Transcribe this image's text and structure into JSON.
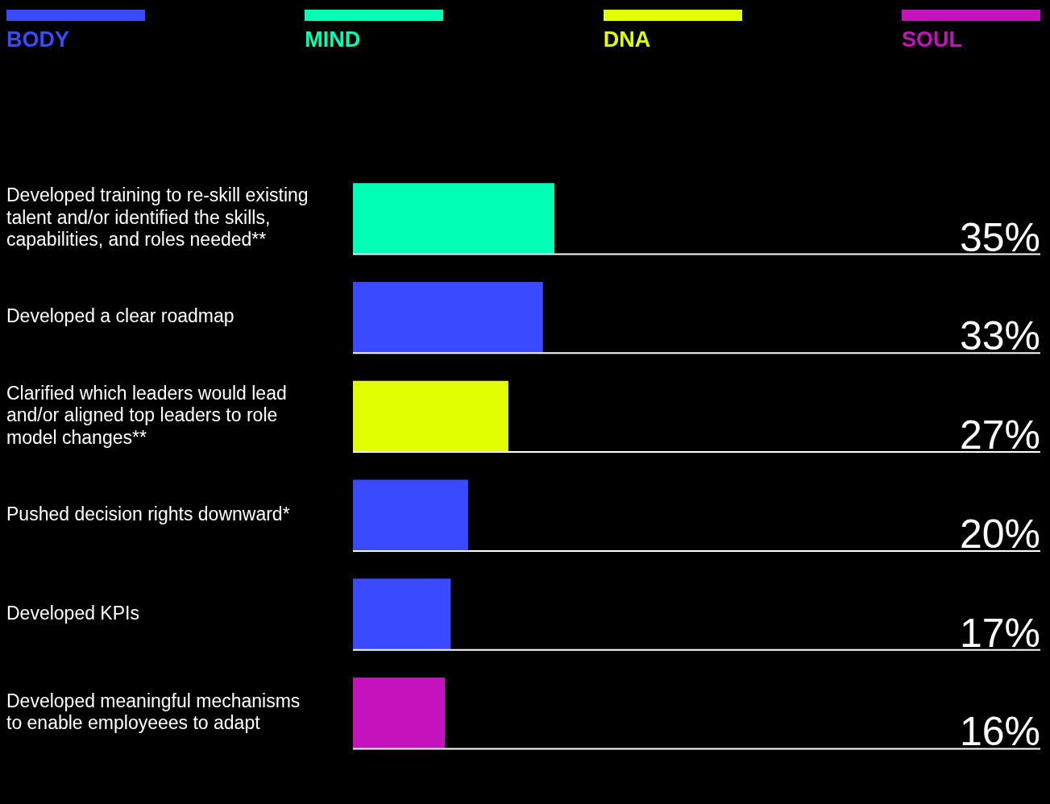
{
  "chart_data": {
    "type": "bar",
    "orientation": "horizontal",
    "stacked": true,
    "legend": "top",
    "tick_labels": "y",
    "categories": [
      "Developed training to re-skill existing talent and/or identified the skills, capabilities, and roles needed**",
      "Developed a clear roadmap",
      "Clarified which leaders would lead and/or aligned top leaders to role model changes**",
      "Pushed decision rights downward*",
      "Developed KPIs",
      "Developed meaningful mechanisms to enable employeees to adapt"
    ],
    "series": [
      {
        "name": "BODY",
        "color": "#3a4bff",
        "values": [
          null,
          33,
          null,
          20,
          17,
          null
        ],
        "value_labels": [
          null,
          "33%",
          null,
          "20%",
          "17%",
          null
        ]
      },
      {
        "name": "MIND",
        "color": "#00ffb4",
        "values": [
          35,
          null,
          null,
          null,
          null,
          null
        ],
        "value_labels": [
          "35%",
          null,
          null,
          null,
          null,
          null
        ]
      },
      {
        "name": "DNA",
        "color": "#e1ff00",
        "values": [
          null,
          null,
          27,
          null,
          null,
          null
        ],
        "value_labels": [
          null,
          null,
          "27%",
          null,
          null,
          null
        ]
      },
      {
        "name": "SOUL",
        "color": "#c412bc",
        "values": [
          null,
          null,
          null,
          null,
          null,
          16
        ],
        "value_labels": [
          null,
          null,
          null,
          null,
          null,
          "16%"
        ]
      }
    ]
  }
}
